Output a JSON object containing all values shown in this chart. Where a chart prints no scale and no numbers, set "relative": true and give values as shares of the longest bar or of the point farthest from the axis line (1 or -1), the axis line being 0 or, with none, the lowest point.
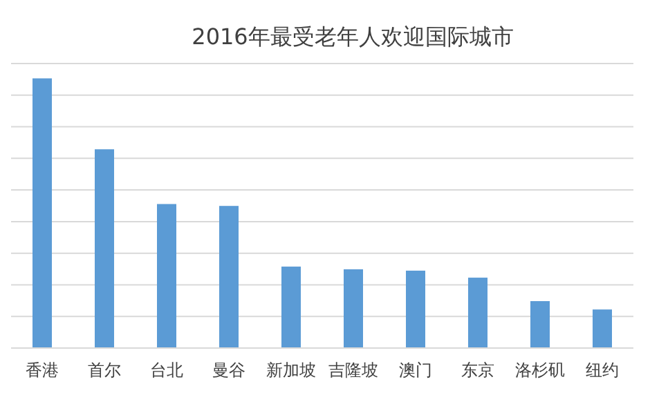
{
  "chart_data": {
    "type": "bar",
    "title": "2016年最受老年人欢迎国际城市",
    "categories": [
      "香港",
      "首尔",
      "台北",
      "曼谷",
      "新加坡",
      "吉隆坡",
      "澳门",
      "东京",
      "洛杉矶",
      "纽约"
    ],
    "values": [
      1,
      0.737,
      0.534,
      0.527,
      0.302,
      0.292,
      0.287,
      0.261,
      0.174,
      0.143
    ],
    "color": "#5b9bd5",
    "relative": true,
    "grid": "y"
  }
}
